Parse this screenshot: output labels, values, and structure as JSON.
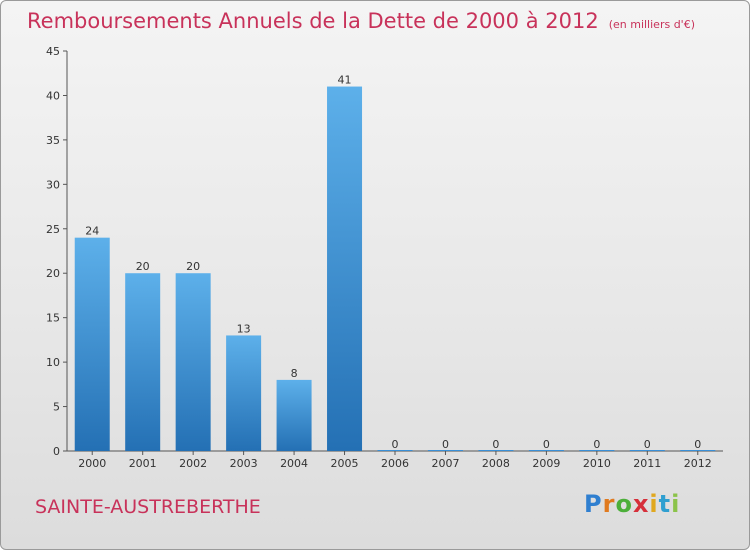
{
  "title": "Remboursements Annuels de la Dette de 2000 à 2012",
  "unit_note": "(en milliers d'€)",
  "commune": "SAINTE-AUSTREBERTHE",
  "logo": {
    "letters": [
      "P",
      "r",
      "o",
      "x",
      "i",
      "t",
      "i"
    ],
    "colors": [
      "#2f7fd0",
      "#e07a1f",
      "#4caf3a",
      "#d62f3a",
      "#e0a81f",
      "#2f9fd0",
      "#8bc34a"
    ]
  },
  "colors": {
    "bar": "#3a8fd6",
    "bar_light": "#5db0ea",
    "bar_dark": "#2470b4",
    "accent": "#c8325a"
  },
  "chart_data": {
    "type": "bar",
    "categories": [
      "2000",
      "2001",
      "2002",
      "2003",
      "2004",
      "2005",
      "2006",
      "2007",
      "2008",
      "2009",
      "2010",
      "2011",
      "2012"
    ],
    "values": [
      24,
      20,
      20,
      13,
      8,
      41,
      0,
      0,
      0,
      0,
      0,
      0,
      0
    ],
    "value_labels": [
      "24",
      "20",
      "20",
      "13",
      "8",
      "41",
      "0",
      "0",
      "0",
      "0",
      "0",
      "0",
      "0"
    ],
    "y_ticks": [
      "0",
      "5",
      "10",
      "15",
      "20",
      "25",
      "30",
      "35",
      "40",
      "45"
    ],
    "ylim": [
      0,
      45
    ],
    "grid": false,
    "legend": "none"
  }
}
